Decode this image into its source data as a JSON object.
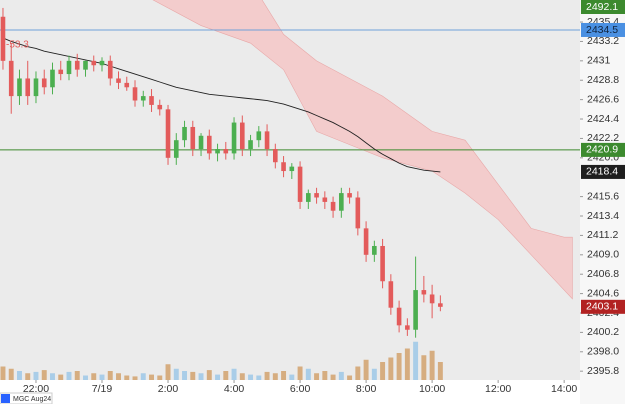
{
  "chart_data": {
    "type": "candlestick",
    "legend_value": "-53.3",
    "instrument": "MGC Aug24",
    "xlim": [
      -1.09,
      16.48
    ],
    "xticks": [
      {
        "value": 0,
        "label": "22:00"
      },
      {
        "value": 2,
        "label": "7/19"
      },
      {
        "value": 4,
        "label": "2:00"
      },
      {
        "value": 6,
        "label": "4:00"
      },
      {
        "value": 8,
        "label": "6:00"
      },
      {
        "value": 10,
        "label": "8:00"
      },
      {
        "value": 12,
        "label": "10:00"
      },
      {
        "value": 14,
        "label": "12:00"
      },
      {
        "value": 16,
        "label": "14:00"
      }
    ],
    "ylim": [
      2394.8,
      2437.9
    ],
    "yticks": [
      2435.4,
      2433.2,
      2431,
      2428.8,
      2426.6,
      2424.4,
      2422.2,
      {
        "value": 2420,
        "label": "2420.0"
      },
      2415.6,
      2413.4,
      2411.2,
      {
        "value": 2409,
        "label": "2409.0"
      },
      2406.8,
      2404.6,
      2402.4,
      2400.2,
      {
        "value": 2398,
        "label": "2398.0"
      },
      2395.8
    ],
    "x": [
      -1,
      -0.75,
      -0.5,
      -0.25,
      0,
      0.25,
      0.5,
      0.75,
      1,
      1.25,
      1.5,
      1.75,
      2,
      2.25,
      2.5,
      2.75,
      3,
      3.25,
      3.5,
      3.75,
      4,
      4.25,
      4.5,
      4.75,
      5,
      5.25,
      5.5,
      5.75,
      6,
      6.25,
      6.5,
      6.75,
      7,
      7.25,
      7.5,
      7.75,
      8,
      8.25,
      8.5,
      8.75,
      9,
      9.25,
      9.5,
      9.75,
      10,
      10.25,
      10.5,
      10.75,
      11,
      11.25,
      11.5,
      11.75,
      12,
      12.25
    ],
    "open": [
      2436,
      2431,
      2427,
      2429,
      2427,
      2429,
      2428,
      2430,
      2429.5,
      2431,
      2430,
      2431,
      2430.5,
      2431,
      2429,
      2428.5,
      2428,
      2426.5,
      2427,
      2426,
      2425.5,
      2420,
      2422,
      2423.5,
      2421,
      2422.5,
      2420.5,
      2421,
      2420.5,
      2424,
      2421,
      2422,
      2423,
      2421,
      2419.5,
      2418.5,
      2419,
      2415,
      2416,
      2415.5,
      2415,
      2414,
      2416,
      2415.5,
      2412,
      2409,
      2410,
      2406,
      2403,
      2401,
      2400.5,
      2405,
      2404.5,
      2403.5
    ],
    "high": [
      2437,
      2433,
      2430,
      2431,
      2429.8,
      2430,
      2430.8,
      2431,
      2431.6,
      2431.8,
      2431,
      2431.6,
      2431.4,
      2431.6,
      2429.8,
      2429.2,
      2428.8,
      2427.6,
      2427.8,
      2426.6,
      2426,
      2422.8,
      2424.2,
      2424.2,
      2422.8,
      2423.2,
      2421.6,
      2421.8,
      2424.6,
      2424.8,
      2422.6,
      2423.6,
      2423.8,
      2421.6,
      2420.2,
      2419.4,
      2419.6,
      2416.4,
      2416.6,
      2416.2,
      2415.6,
      2416.6,
      2416.6,
      2416.2,
      2412.8,
      2410.6,
      2410.8,
      2406.8,
      2403.8,
      2401.8,
      2408.8,
      2406.6,
      2405.6,
      2404.4
    ],
    "low": [
      2430,
      2425,
      2426,
      2426,
      2426.2,
      2427.2,
      2427.2,
      2428.8,
      2428.8,
      2429.2,
      2429.2,
      2429.8,
      2429.8,
      2428.2,
      2427.8,
      2427.6,
      2425.8,
      2425.8,
      2425.2,
      2424.8,
      2419.2,
      2419.2,
      2421.2,
      2420.2,
      2420.2,
      2419.8,
      2419.6,
      2419.8,
      2419.8,
      2420.2,
      2420.2,
      2421.2,
      2420.2,
      2418.8,
      2417.8,
      2417.6,
      2414.2,
      2414.2,
      2414.8,
      2414.2,
      2413.2,
      2413.2,
      2414.8,
      2411.2,
      2408.2,
      2408.2,
      2405.2,
      2402.2,
      2400.2,
      2399.8,
      2399.6,
      2403.6,
      2401.8,
      2402.6
    ],
    "close": [
      2431,
      2427,
      2429,
      2427,
      2429,
      2428,
      2430,
      2429.5,
      2431,
      2430,
      2431,
      2430.5,
      2431,
      2429,
      2428.5,
      2428,
      2426.5,
      2427,
      2426,
      2425.5,
      2420,
      2422,
      2423.5,
      2421,
      2422.5,
      2420.5,
      2421,
      2420.5,
      2424,
      2421,
      2422,
      2423,
      2421,
      2419.5,
      2418.5,
      2419,
      2415,
      2416,
      2415.5,
      2415,
      2414,
      2416,
      2415.5,
      2412,
      2409,
      2410,
      2406,
      2403,
      2401,
      2400.5,
      2405,
      2404.5,
      2403.5,
      2403.1
    ],
    "volume": [
      30,
      25,
      20,
      15,
      18,
      22,
      15,
      12,
      18,
      20,
      10,
      15,
      12,
      20,
      15,
      10,
      8,
      15,
      12,
      10,
      35,
      25,
      20,
      18,
      15,
      22,
      12,
      20,
      25,
      15,
      12,
      10,
      18,
      15,
      20,
      12,
      30,
      25,
      15,
      20,
      12,
      18,
      10,
      30,
      45,
      25,
      40,
      50,
      60,
      70,
      85,
      55,
      65,
      40
    ],
    "volume_lim": [
      0,
      100
    ],
    "moving_average": [
      2433.6,
      2433.2,
      2432.9,
      2432.6,
      2432.4,
      2432.1,
      2431.9,
      2431.7,
      2431.5,
      2431.3,
      2431.1,
      2430.9,
      2430.7,
      2430.4,
      2430.1,
      2429.8,
      2429.5,
      2429.2,
      2428.9,
      2428.6,
      2428.3,
      2428,
      2427.8,
      2427.6,
      2427.4,
      2427.2,
      2427.1,
      2427,
      2426.9,
      2426.8,
      2426.7,
      2426.6,
      2426.5,
      2426.3,
      2426.1,
      2425.8,
      2425.5,
      2425.2,
      2424.8,
      2424.4,
      2424,
      2423.5,
      2423,
      2422.4,
      2421.7,
      2421,
      2420.4,
      2419.9,
      2419.4,
      2419,
      2418.8,
      2418.6,
      2418.5,
      2418.4
    ],
    "cloud": {
      "x": [
        3.5,
        5,
        6.5,
        7.5,
        8.5,
        9.5,
        10.5,
        12,
        13,
        14,
        15,
        16,
        16.25
      ],
      "upper": [
        2440,
        2440,
        2440,
        2434,
        2431,
        2429,
        2427,
        2423,
        2422,
        2417,
        2412,
        2411,
        2411
      ],
      "lower": [
        2438,
        2435,
        2433,
        2430,
        2423,
        2421.5,
        2420,
        2418.5,
        2416,
        2413,
        2409,
        2405,
        2404
      ],
      "color": "#f4c7c7"
    },
    "price_lines": [
      {
        "value": 2434.5,
        "color": "#6fa0d8"
      },
      {
        "value": 2420.9,
        "color": "#3c8a2e"
      }
    ],
    "price_labels": [
      {
        "value": 2492.1,
        "color": "#3c8a2e",
        "text_color": "#ffffff"
      },
      {
        "value": 2434.5,
        "color": "#4a90e2",
        "text_color": "#10243d"
      },
      {
        "value": 2420.9,
        "color": "#3c8a2e",
        "text_color": "#ffffff"
      },
      {
        "value": 2418.4,
        "color": "#1e1e1e",
        "text_color": "#ffffff"
      },
      {
        "value": 2403.1,
        "color": "#b22222",
        "text_color": "#ffffff"
      }
    ],
    "up_color": "#4caf50",
    "down_color": "#e35b5b",
    "volume_up_color": "#a9cde8",
    "volume_down_color": "#d6ad80"
  }
}
